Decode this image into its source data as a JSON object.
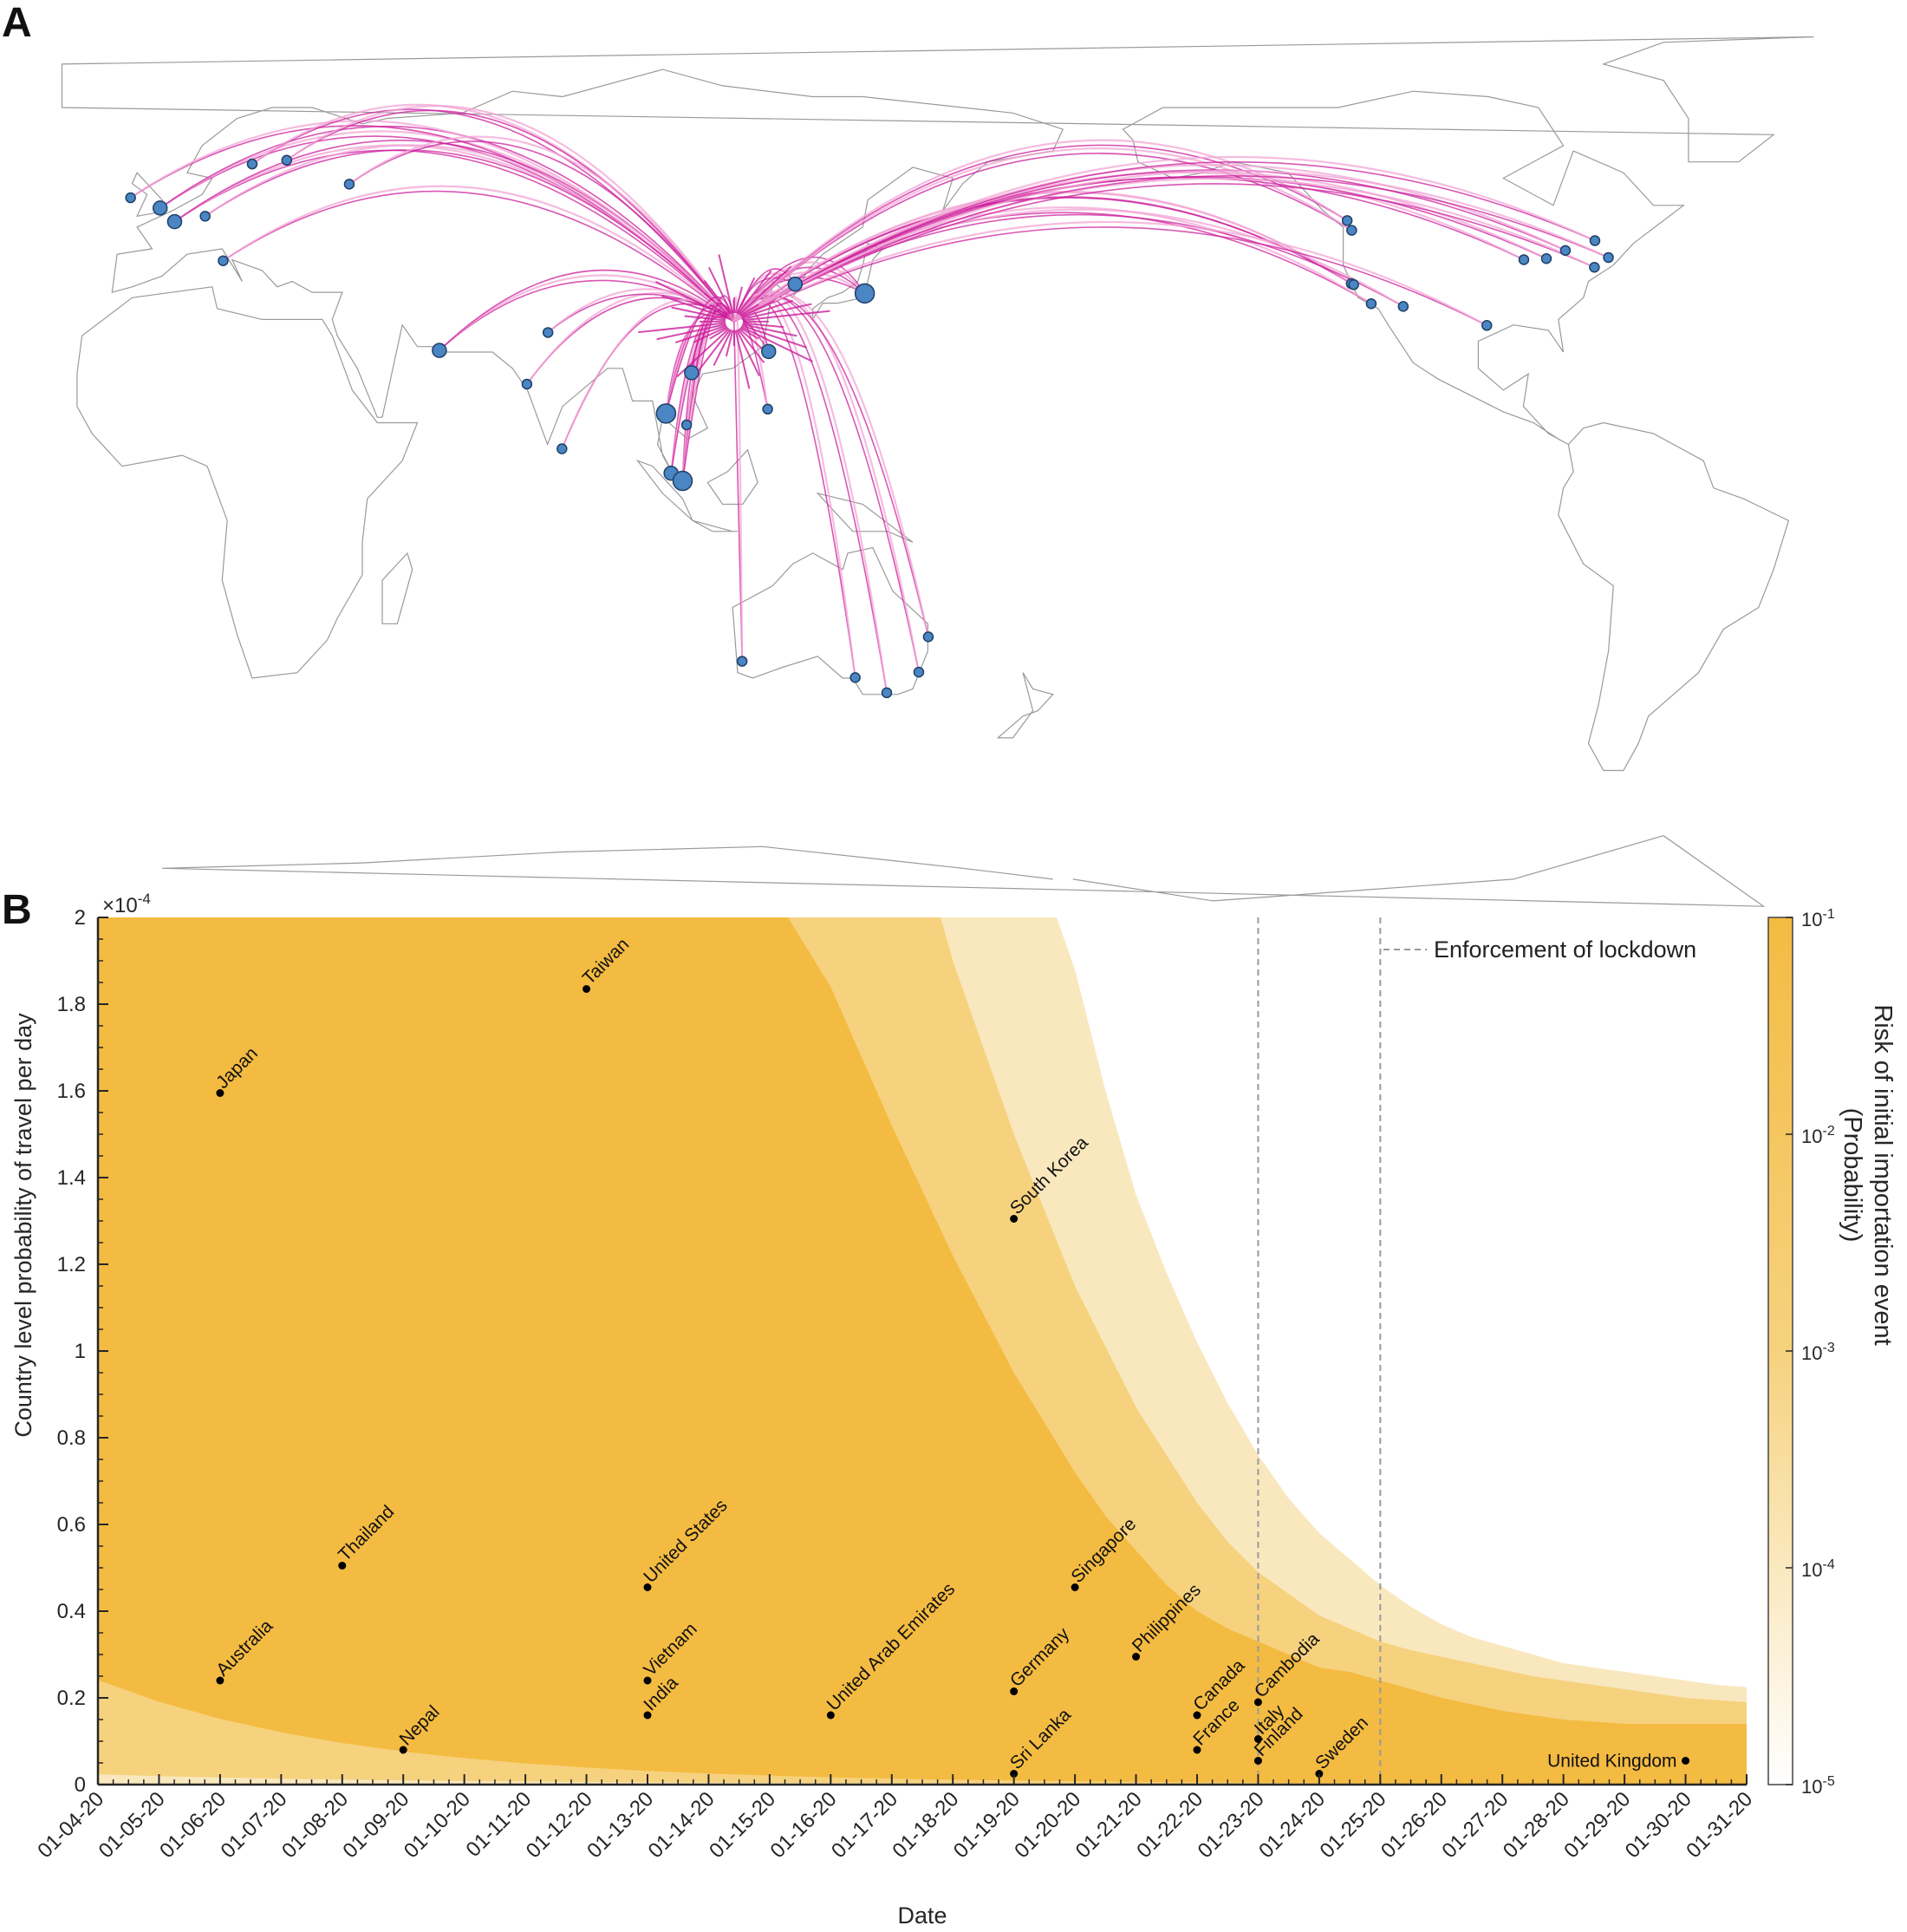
{
  "panels": {
    "a_letter": "A",
    "b_letter": "B"
  },
  "colors": {
    "band_1": "#f4bb42",
    "band_2": "#f6d27e",
    "band_3": "#f9e8be",
    "route_dark": "#cc1f9c",
    "route_light": "#f2a6d6",
    "map_line": "#9a9a9a",
    "airport_fill": "#4a86c4",
    "airport_stroke": "#1e3f66",
    "lockdown_line": "#9a9a9a"
  },
  "map_data": {
    "hub_label": "",
    "airports": [
      {
        "lon": -0.4,
        "lat": 51.5,
        "size": "medium"
      },
      {
        "lon": -6.3,
        "lat": 53.4,
        "size": "small"
      },
      {
        "lon": 2.5,
        "lat": 49.0,
        "size": "medium"
      },
      {
        "lon": 8.6,
        "lat": 50.0,
        "size": "small"
      },
      {
        "lon": 12.2,
        "lat": 41.8,
        "size": "small"
      },
      {
        "lon": 18.0,
        "lat": 59.6,
        "size": "small"
      },
      {
        "lon": 24.9,
        "lat": 60.3,
        "size": "small"
      },
      {
        "lon": 37.4,
        "lat": 55.9,
        "size": "small"
      },
      {
        "lon": 55.4,
        "lat": 25.3,
        "size": "medium"
      },
      {
        "lon": 72.9,
        "lat": 19.1,
        "size": "small"
      },
      {
        "lon": 77.1,
        "lat": 28.6,
        "size": "small"
      },
      {
        "lon": 79.9,
        "lat": 7.2,
        "size": "small"
      },
      {
        "lon": 100.7,
        "lat": 13.7,
        "size": "large"
      },
      {
        "lon": 104.8,
        "lat": 11.6,
        "size": "small"
      },
      {
        "lon": 105.8,
        "lat": 21.2,
        "size": "medium"
      },
      {
        "lon": 101.7,
        "lat": 2.7,
        "size": "medium"
      },
      {
        "lon": 104.0,
        "lat": 1.3,
        "size": "large"
      },
      {
        "lon": 121.0,
        "lat": 14.5,
        "size": "small"
      },
      {
        "lon": 121.2,
        "lat": 25.1,
        "size": "medium"
      },
      {
        "lon": 126.5,
        "lat": 37.5,
        "size": "medium"
      },
      {
        "lon": 140.4,
        "lat": 35.8,
        "size": "large"
      },
      {
        "lon": 115.9,
        "lat": -31.9,
        "size": "small"
      },
      {
        "lon": 138.5,
        "lat": -34.9,
        "size": "small"
      },
      {
        "lon": 144.8,
        "lat": -37.7,
        "size": "small"
      },
      {
        "lon": 151.2,
        "lat": -33.9,
        "size": "small"
      },
      {
        "lon": 153.1,
        "lat": -27.4,
        "size": "small"
      },
      {
        "lon": -122.3,
        "lat": 47.4,
        "size": "small"
      },
      {
        "lon": -123.2,
        "lat": 49.2,
        "size": "small"
      },
      {
        "lon": -122.4,
        "lat": 37.6,
        "size": "small"
      },
      {
        "lon": -118.4,
        "lat": 33.9,
        "size": "small"
      },
      {
        "lon": -121.9,
        "lat": 37.4,
        "size": "small"
      },
      {
        "lon": -112.0,
        "lat": 33.4,
        "size": "small"
      },
      {
        "lon": -95.3,
        "lat": 29.9,
        "size": "small"
      },
      {
        "lon": -87.9,
        "lat": 42.0,
        "size": "small"
      },
      {
        "lon": -83.4,
        "lat": 42.2,
        "size": "small"
      },
      {
        "lon": -79.6,
        "lat": 43.7,
        "size": "small"
      },
      {
        "lon": -73.7,
        "lat": 45.5,
        "size": "small"
      },
      {
        "lon": -73.8,
        "lat": 40.6,
        "size": "small"
      },
      {
        "lon": -71.0,
        "lat": 42.4,
        "size": "small"
      }
    ]
  },
  "chart_data": {
    "type": "area",
    "subtype": "risk bands with labeled scatter points",
    "xlabel": "Date",
    "ylabel": "Country level probability of travel per day",
    "y_exponent_label": "×10",
    "y_exponent_power": "-4",
    "x_tick_labels": [
      "01-04-20",
      "01-05-20",
      "01-06-20",
      "01-07-20",
      "01-08-20",
      "01-09-20",
      "01-10-20",
      "01-11-20",
      "01-12-20",
      "01-13-20",
      "01-14-20",
      "01-15-20",
      "01-16-20",
      "01-17-20",
      "01-18-20",
      "01-19-20",
      "01-20-20",
      "01-21-20",
      "01-22-20",
      "01-23-20",
      "01-24-20",
      "01-25-20",
      "01-26-20",
      "01-27-20",
      "01-28-20",
      "01-29-20",
      "01-30-20",
      "01-31-20"
    ],
    "y_tick_labels": [
      "0",
      "0.2",
      "0.4",
      "0.6",
      "0.8",
      "1",
      "1.2",
      "1.4",
      "1.6",
      "1.8",
      "2"
    ],
    "ylim": [
      0,
      2
    ],
    "y_units": "×10^-4",
    "grid": false,
    "bands": [
      {
        "name": "band_1",
        "note": "region above upper boundary lines, up to top of axes",
        "lower_boundary": {
          "x": [
            20,
            21,
            21.5,
            22,
            22.4,
            23,
            23.5,
            24,
            24.5,
            25,
            25.5,
            26,
            26.5,
            27,
            27.5,
            28,
            28.5,
            29,
            29.5,
            30,
            30.5,
            31
          ],
          "y": [
            0.023,
            0.0175,
            0.0155,
            0.0135,
            0.012,
            0.0105,
            0.0094,
            0.0084,
            0.0075,
            0.0067,
            0.006,
            0.0053,
            0.0047,
            0.0042,
            0.0038,
            0.0035,
            0.0032,
            0.003,
            0.0028,
            0.0027,
            0.0026,
            0.0025
          ]
        }
      },
      {
        "name": "band_2",
        "upper_boundary": {
          "x": [
            15.3,
            16,
            17,
            18,
            19,
            20,
            20.5,
            21,
            21.5,
            22,
            22.5,
            23,
            23.5,
            24,
            24.5,
            25,
            25.5,
            26,
            26.5,
            27,
            27.5,
            28,
            28.5,
            29,
            29.5,
            30,
            30.5,
            31
          ],
          "y": [
            2.0,
            1.84,
            1.52,
            1.22,
            0.95,
            0.72,
            0.62,
            0.54,
            0.46,
            0.4,
            0.36,
            0.33,
            0.3,
            0.27,
            0.26,
            0.24,
            0.22,
            0.2,
            0.185,
            0.17,
            0.16,
            0.15,
            0.145,
            0.14,
            0.14,
            0.14,
            0.14,
            0.14
          ]
        }
      },
      {
        "name": "band_3",
        "upper_boundary": {
          "x": [
            17.8,
            18,
            19,
            20,
            21,
            22,
            22.5,
            23,
            23.5,
            24,
            24.5,
            25,
            25.5,
            26,
            26.5,
            27,
            27.5,
            28,
            28.5,
            29,
            29.5,
            30,
            30.5,
            31
          ],
          "y": [
            2.0,
            1.9,
            1.5,
            1.15,
            0.87,
            0.65,
            0.56,
            0.49,
            0.44,
            0.39,
            0.36,
            0.33,
            0.31,
            0.295,
            0.28,
            0.265,
            0.25,
            0.24,
            0.23,
            0.22,
            0.21,
            0.2,
            0.195,
            0.19
          ]
        }
      },
      {
        "name": "band_4_white",
        "upper_boundary": {
          "x": [
            19.7,
            20,
            20.5,
            21,
            21.5,
            22,
            22.5,
            23,
            23.5,
            24,
            24.5,
            25,
            25.5,
            26,
            26.5,
            27,
            27.5,
            28,
            28.5,
            29,
            29.5,
            30,
            30.5,
            31
          ],
          "y": [
            2.0,
            1.88,
            1.6,
            1.36,
            1.18,
            1.02,
            0.88,
            0.76,
            0.66,
            0.58,
            0.52,
            0.46,
            0.41,
            0.37,
            0.34,
            0.32,
            0.3,
            0.28,
            0.27,
            0.26,
            0.25,
            0.24,
            0.23,
            0.225
          ]
        }
      }
    ],
    "points": [
      {
        "label": "Japan",
        "x": 6,
        "y": 1.595
      },
      {
        "label": "Taiwan",
        "x": 12,
        "y": 1.835
      },
      {
        "label": "South Korea",
        "x": 19,
        "y": 1.305
      },
      {
        "label": "Thailand",
        "x": 8,
        "y": 0.505
      },
      {
        "label": "United States",
        "x": 13,
        "y": 0.455
      },
      {
        "label": "Singapore",
        "x": 20,
        "y": 0.455
      },
      {
        "label": "Australia",
        "x": 6,
        "y": 0.24
      },
      {
        "label": "Vietnam",
        "x": 13,
        "y": 0.24
      },
      {
        "label": "India",
        "x": 13,
        "y": 0.16
      },
      {
        "label": "United Arab Emirates",
        "x": 16,
        "y": 0.16
      },
      {
        "label": "Philippines",
        "x": 21,
        "y": 0.295
      },
      {
        "label": "Germany",
        "x": 19,
        "y": 0.215
      },
      {
        "label": "Canada",
        "x": 22,
        "y": 0.16
      },
      {
        "label": "Cambodia",
        "x": 23,
        "y": 0.19
      },
      {
        "label": "France",
        "x": 22,
        "y": 0.08
      },
      {
        "label": "Italy",
        "x": 23,
        "y": 0.105
      },
      {
        "label": "Finland",
        "x": 23,
        "y": 0.055
      },
      {
        "label": "Nepal",
        "x": 9,
        "y": 0.08
      },
      {
        "label": "Sri Lanka",
        "x": 19,
        "y": 0.025
      },
      {
        "label": "Sweden",
        "x": 24,
        "y": 0.025
      },
      {
        "label": "United Kingdom",
        "x": 30,
        "y": 0.055,
        "label_side": "left"
      }
    ],
    "lockdown_lines_x": [
      23,
      25
    ],
    "legend": {
      "entry": "Enforcement of lockdown",
      "placement": "top-right"
    },
    "colorbar": {
      "title_line1": "Risk of initial importation event",
      "title_line2": "(Probability)",
      "scale": "log",
      "tick_bases": [
        "10",
        "10",
        "10",
        "10",
        "10"
      ],
      "tick_exponents": [
        "-1",
        "-2",
        "-3",
        "-4",
        "-5"
      ]
    }
  }
}
